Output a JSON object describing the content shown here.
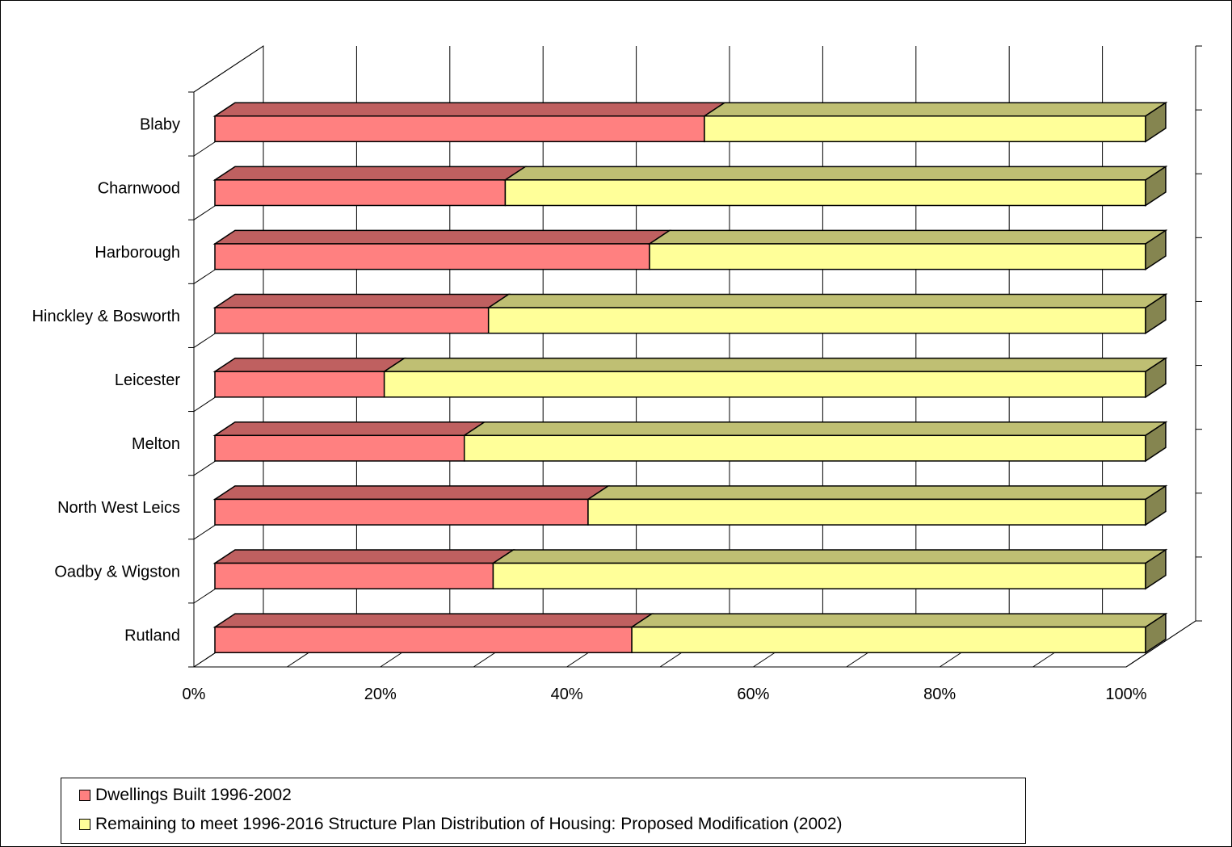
{
  "chart_data": {
    "type": "bar",
    "orientation": "horizontal",
    "stacked": "percent",
    "three_d": true,
    "title": "",
    "xlabel": "",
    "ylabel": "",
    "categories": [
      "Blaby",
      "Charnwood",
      "Harborough",
      "Hinckley & Bosworth",
      "Leicester",
      "Melton",
      "North West Leics",
      "Oadby & Wigston",
      "Rutland"
    ],
    "series": [
      {
        "name": "Dwellings Built 1996-2002",
        "color": "#ff8080",
        "values": [
          52.6,
          31.2,
          46.7,
          29.4,
          18.2,
          26.8,
          40.1,
          29.9,
          44.8
        ]
      },
      {
        "name": "Remaining to meet 1996-2016 Structure Plan Distribution of Housing: Proposed Modification (2002)",
        "color": "#ffff99",
        "values": [
          47.4,
          68.8,
          53.3,
          70.6,
          81.8,
          73.2,
          59.9,
          70.1,
          55.2
        ]
      }
    ],
    "xticks": [
      "0%",
      "20%",
      "40%",
      "60%",
      "80%",
      "100%"
    ],
    "xlim": [
      0,
      100
    ],
    "grid": true,
    "legend_position": "bottom-left"
  }
}
